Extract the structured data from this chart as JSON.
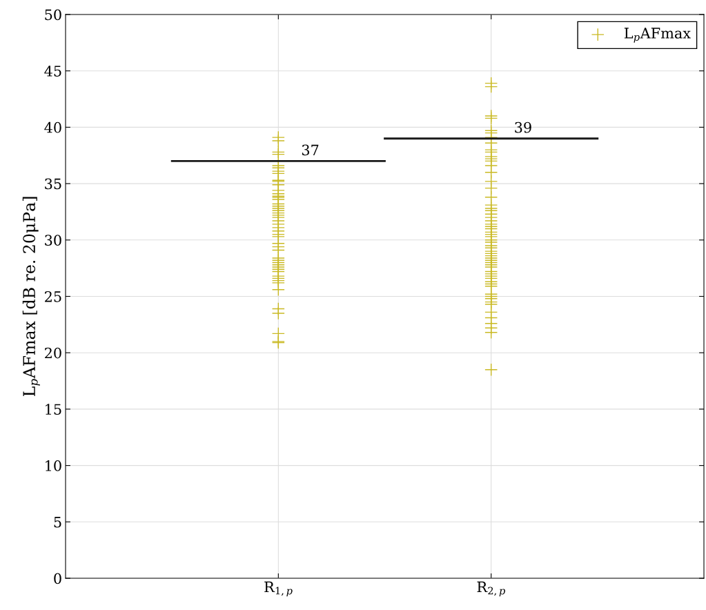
{
  "chart_data": {
    "type": "scatter",
    "ylabel": "L$_{p}$AFmax [dB re. 20μPa]",
    "xlim": [
      0,
      3
    ],
    "xticks": [
      {
        "value": 1,
        "label": "R$_{1,p}$"
      },
      {
        "value": 2,
        "label": "R$_{2,p}$"
      }
    ],
    "ylim": [
      0,
      50
    ],
    "yticks": [
      0,
      5,
      10,
      15,
      20,
      25,
      30,
      35,
      40,
      45,
      50
    ],
    "grid": true,
    "legend": "top right",
    "annotations": [
      {
        "text": "37",
        "x": 1.15,
        "y": 37
      },
      {
        "text": "39",
        "x": 2.15,
        "y": 39
      }
    ],
    "series": [
      {
        "name": "L$_{p}$AFmax",
        "marker": "cross",
        "color": "#c9b923",
        "x": [
          1,
          1,
          1,
          1,
          1,
          1,
          1,
          1,
          1,
          1,
          1,
          1,
          1,
          1,
          1,
          1,
          1,
          1,
          1,
          1,
          1,
          1,
          1,
          1,
          1,
          1,
          1,
          1,
          1,
          1,
          1,
          1,
          1,
          1,
          1,
          1,
          1,
          1,
          1,
          1,
          1,
          1,
          1,
          1,
          1,
          1,
          1,
          1,
          1,
          2,
          2,
          2,
          2,
          2,
          2,
          2,
          2,
          2,
          2,
          2,
          2,
          2,
          2,
          2,
          2,
          2,
          2,
          2,
          2,
          2,
          2,
          2,
          2,
          2,
          2,
          2,
          2,
          2,
          2,
          2,
          2,
          2,
          2,
          2,
          2,
          2,
          2,
          2,
          2,
          2,
          2,
          2,
          2,
          2,
          2,
          2,
          2,
          2,
          2,
          2,
          2,
          2,
          2,
          2,
          2,
          2,
          2,
          2,
          2
        ],
        "values": [
          39.1,
          38.8,
          37.8,
          37.6,
          36.6,
          36.4,
          36.1,
          35.9,
          35.3,
          35.2,
          34.9,
          34.4,
          34.1,
          33.9,
          33.8,
          33.6,
          33.2,
          33.0,
          32.8,
          32.6,
          32.4,
          32.2,
          32.0,
          31.7,
          31.4,
          31.1,
          30.8,
          30.5,
          30.3,
          29.7,
          29.4,
          29.1,
          28.4,
          28.2,
          28.0,
          27.8,
          27.6,
          27.4,
          27.2,
          26.8,
          26.6,
          26.4,
          26.2,
          25.6,
          23.9,
          23.5,
          21.7,
          20.9,
          21.0,
          43.9,
          43.6,
          41.0,
          40.8,
          39.7,
          39.5,
          39.1,
          38.6,
          38.0,
          37.8,
          37.4,
          37.2,
          37.0,
          36.6,
          36.0,
          35.2,
          34.6,
          33.8,
          33.1,
          32.8,
          32.6,
          32.3,
          32.0,
          31.7,
          31.4,
          31.2,
          31.0,
          30.7,
          30.5,
          30.3,
          30.0,
          29.8,
          29.5,
          29.3,
          29.0,
          28.8,
          28.6,
          28.4,
          28.2,
          28.0,
          27.8,
          27.6,
          27.2,
          27.0,
          26.8,
          26.6,
          26.3,
          26.1,
          25.9,
          25.2,
          25.0,
          24.8,
          24.5,
          24.3,
          23.6,
          23.1,
          22.6,
          22.2,
          21.8,
          18.5
        ]
      },
      {
        "type": "line",
        "marker": "none",
        "line_style": "solid",
        "color": "#1a1a1a",
        "x": [
          0.5,
          1.5
        ],
        "values": [
          37,
          37
        ]
      },
      {
        "type": "line",
        "marker": "none",
        "line_style": "solid",
        "color": "#1a1a1a",
        "x": [
          1.5,
          2.5
        ],
        "values": [
          39,
          39
        ]
      }
    ]
  }
}
